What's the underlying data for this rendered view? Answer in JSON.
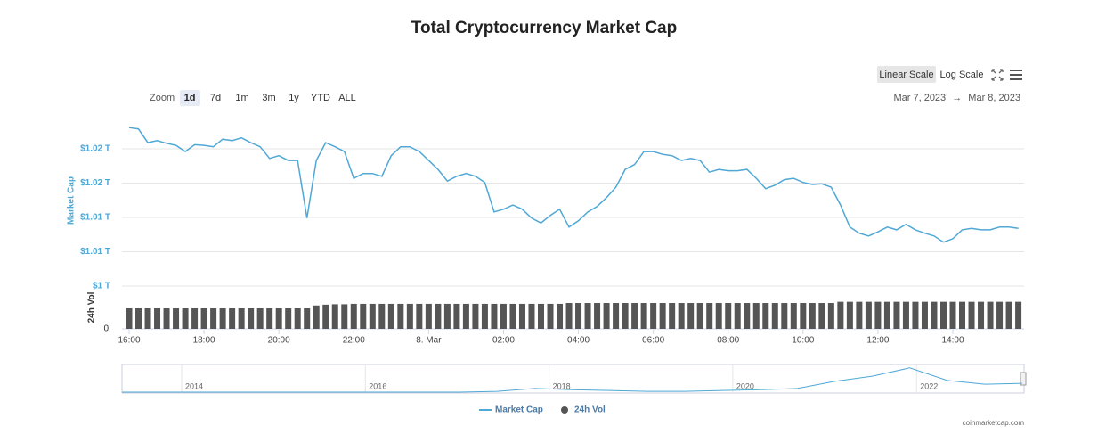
{
  "title": "Total Cryptocurrency Market Cap",
  "toolbar": {
    "scale_buttons": [
      "Linear Scale",
      "Log Scale"
    ],
    "zoom_label": "Zoom",
    "zoom_buttons": [
      "1d",
      "7d",
      "1m",
      "3m",
      "1y",
      "YTD",
      "ALL"
    ]
  },
  "date_range": {
    "from": "Mar 7, 2023",
    "separator": "→",
    "to": "Mar 8, 2023"
  },
  "chart_data": {
    "type": "line",
    "y_label": "Market Cap",
    "categories": [
      "16:00",
      null,
      null,
      null,
      null,
      null,
      null,
      null,
      "18:00",
      null,
      null,
      null,
      null,
      null,
      null,
      null,
      "20:00",
      null,
      null,
      null,
      null,
      null,
      null,
      null,
      "22:00",
      null,
      null,
      null,
      null,
      null,
      null,
      null,
      "8. Mar",
      null,
      null,
      null,
      null,
      null,
      null,
      null,
      "02:00",
      null,
      null,
      null,
      null,
      null,
      null,
      null,
      "04:00",
      null,
      null,
      null,
      null,
      null,
      null,
      null,
      "06:00",
      null,
      null,
      null,
      null,
      null,
      null,
      null,
      "08:00",
      null,
      null,
      null,
      null,
      null,
      null,
      null,
      "10:00",
      null,
      null,
      null,
      null,
      null,
      null,
      null,
      "12:00",
      null,
      null,
      null,
      null,
      null,
      null,
      null,
      "14:00",
      null,
      null,
      null,
      null,
      null,
      null,
      null
    ],
    "series": [
      {
        "name": "Market Cap",
        "color": "#4fa8d6",
        "values": [
          1.0231,
          1.0229,
          1.0209,
          1.0212,
          1.0208,
          1.0205,
          1.0196,
          1.0206,
          1.0205,
          1.0203,
          1.0214,
          1.0212,
          1.0216,
          1.0209,
          1.0203,
          1.0186,
          1.019,
          1.0183,
          1.0183,
          1.0099,
          1.0183,
          1.0209,
          1.0203,
          1.0196,
          1.0157,
          1.0164,
          1.0164,
          1.016,
          1.019,
          1.0203,
          1.0203,
          1.0196,
          1.0183,
          1.017,
          1.0153,
          1.016,
          1.0164,
          1.016,
          1.0151,
          1.0108,
          1.0112,
          1.0118,
          1.0112,
          1.0099,
          1.0092,
          1.0103,
          1.0112,
          1.0086,
          1.0095,
          1.0108,
          1.0116,
          1.0129,
          1.0144,
          1.017,
          1.0177,
          1.0196,
          1.0196,
          1.0192,
          1.019,
          1.0183,
          1.0186,
          1.0183,
          1.0166,
          1.017,
          1.0168,
          1.0168,
          1.017,
          1.0157,
          1.0142,
          1.0147,
          1.0155,
          1.0157,
          1.0151,
          1.0148,
          1.0149,
          1.0144,
          1.0118,
          1.0086,
          1.0077,
          1.0073,
          1.0079,
          1.0086,
          1.0082,
          1.009,
          1.0082,
          1.0077,
          1.0073,
          1.0064,
          1.0069,
          1.0082,
          1.0084,
          1.0082,
          1.0082,
          1.0086,
          1.0086,
          1.0084
        ]
      }
    ],
    "ylim": [
      1.0,
      1.025
    ],
    "yticks": [
      {
        "value": 1.02,
        "label": "$1.02 T"
      },
      {
        "value": 1.015,
        "label": "$1.02 T"
      },
      {
        "value": 1.01,
        "label": "$1.01 T"
      },
      {
        "value": 1.005,
        "label": "$1.01 T"
      },
      {
        "value": 1.0,
        "label": "$1 T"
      }
    ],
    "grid": true,
    "volume": {
      "name": "24h Vol",
      "axis_label": "24h Vol",
      "color": "#555555",
      "ylim": [
        0,
        100
      ],
      "yticks": [
        0
      ],
      "values": [
        50,
        50,
        50,
        50,
        50,
        50,
        50,
        50,
        50,
        50,
        50,
        50,
        50,
        50,
        50,
        50,
        50,
        50,
        50,
        50,
        57,
        59,
        60,
        60,
        61,
        61,
        61,
        61,
        61,
        61,
        61,
        61,
        61,
        61,
        61,
        61,
        61,
        61,
        61,
        61,
        61,
        61,
        61,
        61,
        61,
        61,
        61,
        63,
        63,
        63,
        63,
        63,
        63,
        63,
        63,
        63,
        63,
        63,
        63,
        63,
        63,
        63,
        63,
        63,
        63,
        63,
        63,
        63,
        63,
        63,
        63,
        63,
        63,
        63,
        63,
        63,
        66,
        66,
        66,
        66,
        66,
        66,
        66,
        66,
        66,
        66,
        66,
        66,
        66,
        66,
        66,
        66,
        66,
        66,
        66,
        66
      ]
    }
  },
  "navigator": {
    "labels": [
      "2014",
      "2016",
      "2018",
      "2020",
      "2022"
    ],
    "ylim": [
      0,
      100
    ],
    "values": [
      3,
      3,
      3,
      3,
      3,
      3,
      3,
      3,
      3,
      3,
      6,
      16,
      12,
      9,
      6,
      6,
      9,
      12,
      16,
      41,
      59,
      88,
      44,
      31,
      34
    ]
  },
  "credit": "coinmarketcap.com"
}
